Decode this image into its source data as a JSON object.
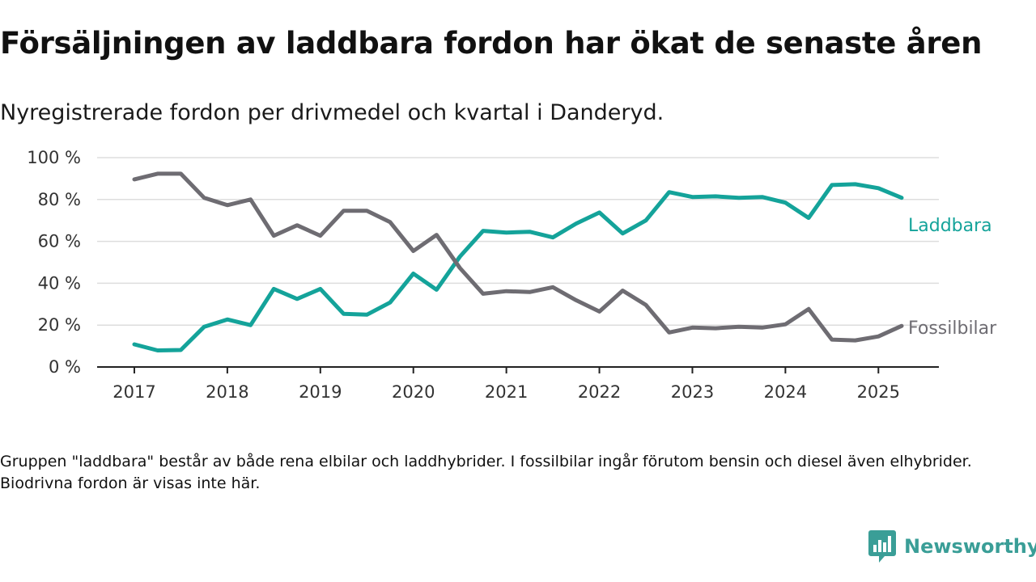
{
  "header": {
    "title": "Försäljningen av laddbara fordon har ökat de senaste åren",
    "subtitle": "Nyregistrerade fordon per drivmedel och kvartal i Danderyd."
  },
  "footnote": "Gruppen \"laddbara\" består av både rena elbilar och laddhybrider. I fossilbilar ingår förutom bensin och diesel även elhybrider. Biodrivna fordon är visas inte här.",
  "brand": {
    "name": "Newsworthy",
    "icon": "newsworthy-logo-icon",
    "color": "#3a9e97"
  },
  "chart_data": {
    "type": "line",
    "title": "Försäljningen av laddbara fordon har ökat de senaste åren",
    "subtitle": "Nyregistrerade fordon per drivmedel och kvartal i Danderyd.",
    "x_unit": "year (quarterly)",
    "x": [
      2017.0,
      2017.25,
      2017.5,
      2017.75,
      2018.0,
      2018.25,
      2018.5,
      2018.75,
      2019.0,
      2019.25,
      2019.5,
      2019.75,
      2020.0,
      2020.25,
      2020.5,
      2020.75,
      2021.0,
      2021.25,
      2021.5,
      2021.75,
      2022.0,
      2022.25,
      2022.5,
      2022.75,
      2023.0,
      2023.25,
      2023.5,
      2023.75,
      2024.0,
      2024.25,
      2024.5,
      2024.75,
      2025.0,
      2025.25
    ],
    "xticks": [
      2017,
      2018,
      2019,
      2020,
      2021,
      2022,
      2023,
      2024,
      2025
    ],
    "xlim": [
      2016.6,
      2025.65
    ],
    "ylim": [
      0,
      100
    ],
    "yticks": [
      0,
      20,
      40,
      60,
      80,
      100
    ],
    "ytick_labels": [
      "0 %",
      "20 %",
      "40 %",
      "60 %",
      "80 %",
      "100 %"
    ],
    "grid": true,
    "legend": "direct labels at line ends (right)",
    "series": [
      {
        "name": "Laddbara",
        "color": "#14a39a",
        "values": [
          10.8,
          7.9,
          8.1,
          19.2,
          22.7,
          20.0,
          37.3,
          32.5,
          37.3,
          25.4,
          25.0,
          30.8,
          44.6,
          36.9,
          52.7,
          65.0,
          64.2,
          64.6,
          61.9,
          68.5,
          73.8,
          63.8,
          70.0,
          83.5,
          81.2,
          81.5,
          80.8,
          81.2,
          78.5,
          71.2,
          86.9,
          87.3,
          85.4,
          80.8
        ]
      },
      {
        "name": "Fossilbilar",
        "color": "#6e6c72",
        "values": [
          89.6,
          92.3,
          92.3,
          80.8,
          77.3,
          80.0,
          62.7,
          67.7,
          62.7,
          74.6,
          74.6,
          69.2,
          55.4,
          63.1,
          47.3,
          35.0,
          36.2,
          35.8,
          38.1,
          31.9,
          26.5,
          36.5,
          29.6,
          16.5,
          18.8,
          18.5,
          19.2,
          18.8,
          20.4,
          27.7,
          13.1,
          12.7,
          14.6,
          19.6
        ]
      }
    ]
  }
}
